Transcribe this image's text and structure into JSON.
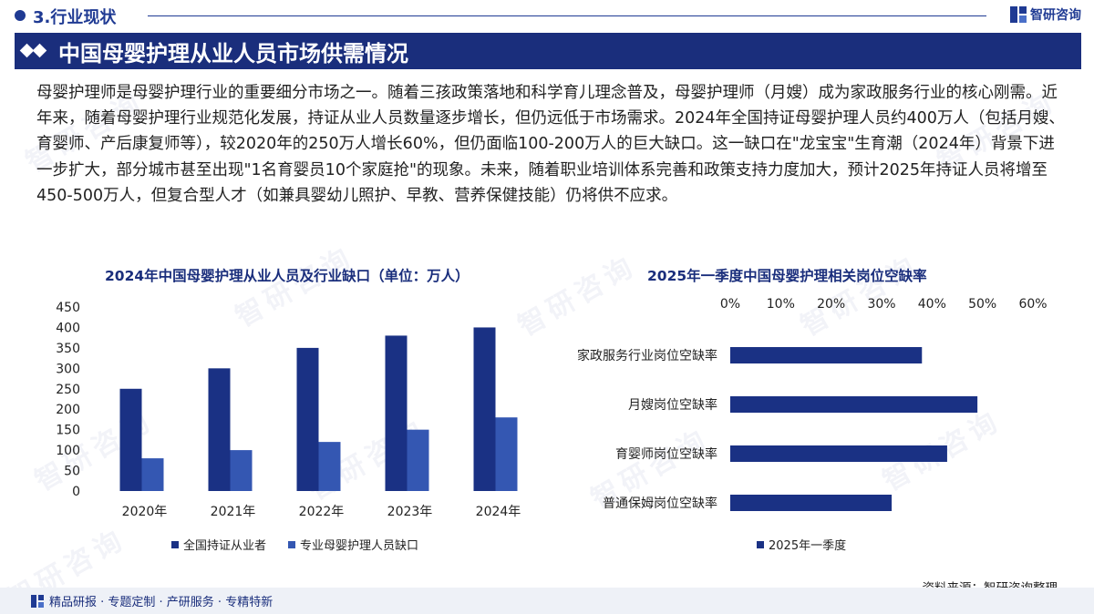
{
  "header": {
    "section": "3.行业现状",
    "brand": "智研咨询",
    "title": "中国母婴护理从业人员市场供需情况",
    "watermark": "智研咨询"
  },
  "paragraph": "母婴护理师是母婴护理行业的重要细分市场之一。随着三孩政策落地和科学育儿理念普及，母婴护理师（月嫂）成为家政服务行业的核心刚需。近年来，随着母婴护理行业规范化发展，持证从业人员数量逐步增长，但仍远低于市场需求。2024年全国持证母婴护理人员约400万人（包括月嫂、育婴师、产后康复师等），较2020年的250万人增长60%，但仍面临100-200万人的巨大缺口。这一缺口在\"龙宝宝\"生育潮（2024年）背景下进一步扩大，部分城市甚至出现\"1名育婴员10个家庭抢\"的现象。未来，随着职业培训体系完善和政策支持力度加大，预计2025年持证人员将增至450-500万人，但复合型人才（如兼具婴幼儿照护、早教、营养保健技能）仍将供不应求。",
  "chart_data": [
    {
      "type": "bar",
      "title": "2024年中国母婴护理从业人员及行业缺口（单位：万人）",
      "categories": [
        "2020年",
        "2021年",
        "2022年",
        "2023年",
        "2024年"
      ],
      "series": [
        {
          "name": "全国持证从业者",
          "values": [
            250,
            300,
            350,
            380,
            400
          ],
          "color": "#1a3184"
        },
        {
          "name": "专业母婴护理人员缺口",
          "values": [
            80,
            100,
            120,
            150,
            180
          ],
          "color": "#3457b2"
        }
      ],
      "ylim": [
        0,
        450
      ],
      "yticks": [
        "0",
        "50",
        "100",
        "150",
        "200",
        "250",
        "300",
        "350",
        "400",
        "450"
      ],
      "grid": false,
      "legend": "bottom"
    },
    {
      "type": "bar",
      "orientation": "horizontal",
      "title": "2025年一季度中国母婴护理相关岗位空缺率",
      "categories": [
        "家政服务行业岗位空缺率",
        "月嫂岗位空缺率",
        "育婴师岗位空缺率",
        "普通保姆岗位空缺率"
      ],
      "series": [
        {
          "name": "2025年一季度",
          "values": [
            38,
            49,
            43,
            32
          ],
          "color": "#1a3184"
        }
      ],
      "xlim": [
        0,
        60
      ],
      "xticks": [
        "0%",
        "10%",
        "20%",
        "30%",
        "40%",
        "50%",
        "60%"
      ],
      "xaxis_position": "top",
      "grid": false,
      "legend": "bottom"
    }
  ],
  "source": "资料来源：智研咨询整理",
  "footer": "精品研报 · 专题定制 · 产研服务 · 专精特新"
}
